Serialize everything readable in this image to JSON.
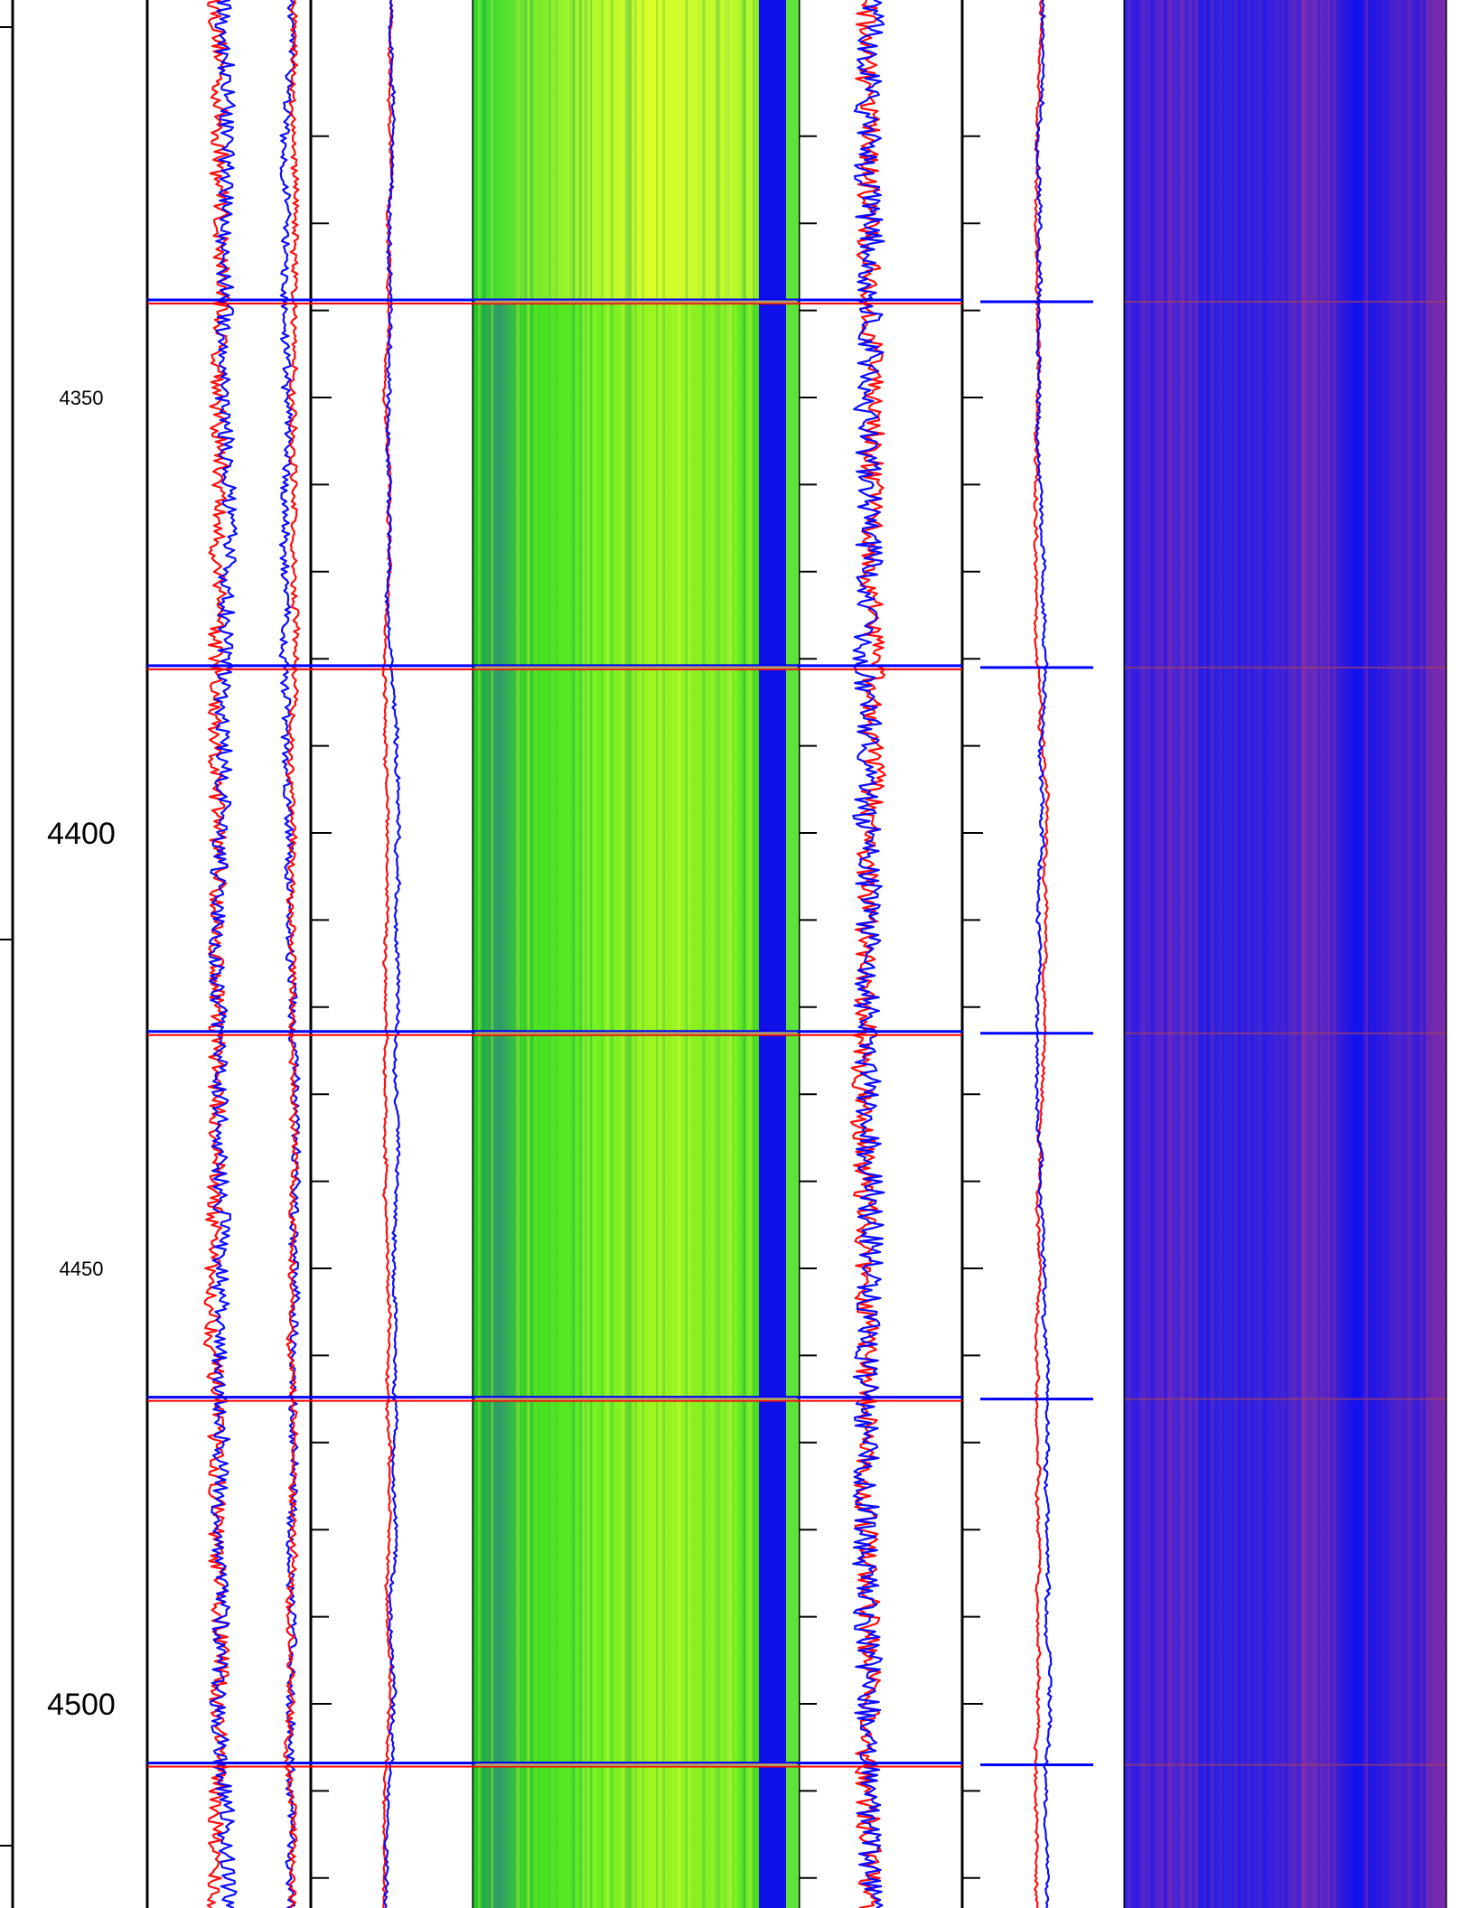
{
  "chart_data": {
    "type": "line",
    "title": "",
    "ylabel": "",
    "y_axis_depth_range": [
      4315,
      4535
    ],
    "depth_increases_downward": true,
    "depth_tick_labels": [
      {
        "depth": 4350,
        "label": "4350",
        "style": "minor"
      },
      {
        "depth": 4400,
        "label": "4400",
        "style": "major"
      },
      {
        "depth": 4450,
        "label": "4450",
        "style": "minor"
      },
      {
        "depth": 4500,
        "label": "4500",
        "style": "major"
      }
    ],
    "minor_tick_interval": 10,
    "joint_event_depths": [
      4339,
      4381,
      4423,
      4465,
      4507
    ],
    "tracks": [
      {
        "id": "track1",
        "kind": "curves",
        "series": [
          {
            "color": "#ff0000",
            "center": 0.42,
            "spread": 0.1
          },
          {
            "color": "#0000ff",
            "center": 0.46,
            "spread": 0.1
          },
          {
            "color": "#0000ff",
            "center": 0.87,
            "spread": 0.05
          },
          {
            "color": "#ff0000",
            "center": 0.89,
            "spread": 0.04
          }
        ]
      },
      {
        "id": "track2",
        "kind": "curves",
        "series": [
          {
            "color": "#ff0000",
            "center": 0.49,
            "spread": 0.015
          },
          {
            "color": "#0000ff",
            "center": 0.5,
            "spread": 0.02
          }
        ]
      },
      {
        "id": "track3",
        "kind": "image",
        "palette": "green-yellow",
        "right_band_color": "#1010e8"
      },
      {
        "id": "track4",
        "kind": "curves",
        "series": [
          {
            "color": "#ff0000",
            "center": 0.42,
            "spread": 0.14
          },
          {
            "color": "#0000ff",
            "center": 0.45,
            "spread": 0.16
          }
        ]
      },
      {
        "id": "track5",
        "kind": "curves",
        "series": [
          {
            "color": "#ff0000",
            "center": 0.49,
            "spread": 0.015
          },
          {
            "color": "#0000ff",
            "center": 0.5,
            "spread": 0.02
          }
        ]
      },
      {
        "id": "track6",
        "kind": "image",
        "palette": "blue-purple"
      }
    ],
    "colors": {
      "red_curve": "#ff0000",
      "blue_curve": "#0000ff",
      "frame": "#000000"
    }
  }
}
